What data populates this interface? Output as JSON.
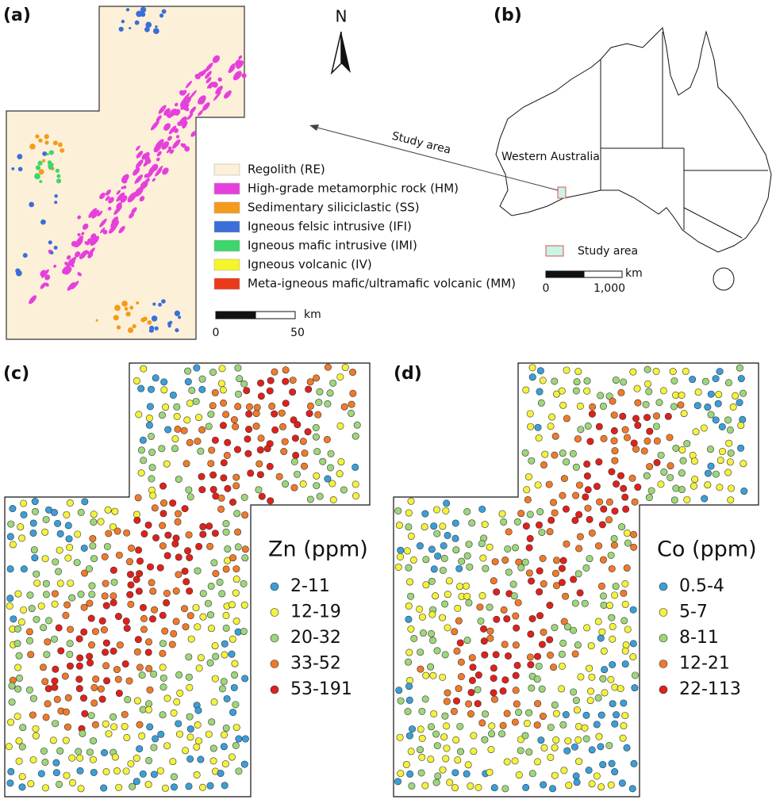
{
  "panel_a": {
    "label": "(a)",
    "north": "N",
    "legend": [
      {
        "name": "Regolith (RE)",
        "color": "#fdf0d8"
      },
      {
        "name": "High-grade metamorphic rock (HM)",
        "color": "#e640dc"
      },
      {
        "name": "Sedimentary siliciclastic (SS)",
        "color": "#f59a1a"
      },
      {
        "name": "Igneous felsic intrusive (IFI)",
        "color": "#3a6fd8"
      },
      {
        "name": "Igneous mafic intrusive (IMI)",
        "color": "#3dd66b"
      },
      {
        "name": "Igneous volcanic (IV)",
        "color": "#f5f52a"
      },
      {
        "name": "Meta-igneous mafic/ultramafic volcanic (MM)",
        "color": "#ea3a1a"
      }
    ],
    "scale": {
      "unit": "km",
      "ticks": [
        "0",
        "50"
      ]
    }
  },
  "panel_b": {
    "label": "(b)",
    "region": "Western Australia",
    "arrow_label": "Study area",
    "legend": {
      "name": "Study area",
      "color": "#c8f5e6"
    },
    "scale": {
      "unit": "km",
      "ticks": [
        "0",
        "1,000"
      ]
    }
  },
  "panel_c": {
    "label": "(c)",
    "title": "Zn (ppm)",
    "classes": [
      {
        "name": "2-11",
        "color": "#3a9fd8"
      },
      {
        "name": "12-19",
        "color": "#f4f23c"
      },
      {
        "name": "20-32",
        "color": "#9ed67a"
      },
      {
        "name": "33-52",
        "color": "#f07a2a"
      },
      {
        "name": "53-191",
        "color": "#e0211b"
      }
    ]
  },
  "panel_d": {
    "label": "(d)",
    "title": "Co (ppm)",
    "classes": [
      {
        "name": "0.5-4",
        "color": "#3a9fd8"
      },
      {
        "name": "5-7",
        "color": "#f4f23c"
      },
      {
        "name": "8-11",
        "color": "#9ed67a"
      },
      {
        "name": "12-21",
        "color": "#f07a2a"
      },
      {
        "name": "22-113",
        "color": "#e0211b"
      }
    ]
  }
}
